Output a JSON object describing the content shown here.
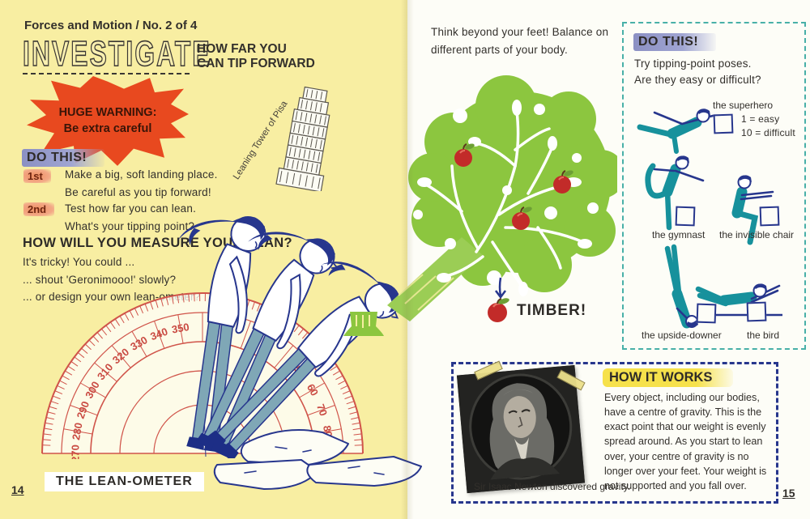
{
  "palette": {
    "page_yellow": "#f8eea2",
    "page_white": "#fdfdf7",
    "warning_red": "#e8491f",
    "navy": "#27368d",
    "teal_pose": "#17919c",
    "slate_pants": "#7fa7b6",
    "protractor_red": "#d0544a",
    "tree_green": "#8cc63f",
    "trunk_green": "#9bcd55",
    "highlight_yellow": "#f6e14b",
    "brush_purple": "#8b90c3",
    "brush_salmon": "#ee8d60"
  },
  "left_page": {
    "kicker": "Forces and Motion / No. 2 of 4",
    "title": "INVESTIGATE",
    "subtitle_line1": "HOW FAR YOU",
    "subtitle_line2": "CAN TIP FORWARD",
    "warning_line1": "HUGE WARNING:",
    "warning_line2": "Be extra careful",
    "do_this": {
      "heading": "DO THIS!",
      "steps": [
        {
          "badge": "1st",
          "line1": "Make a big, soft landing place.",
          "line2": "Be careful as you tip forward!"
        },
        {
          "badge": "2nd",
          "line1": "Test how far you can lean.",
          "line2": "What's your tipping point?"
        }
      ]
    },
    "measure": {
      "heading": "HOW WILL YOU MEASURE YOUR LEAN?",
      "line1": "It's tricky! You could ...",
      "line2": "... shout 'Geronimooo!' slowly?",
      "line3": "... or design your own lean-ometer?"
    },
    "pisa_label": "Leaning Tower of Pisa",
    "lean_ometer_label": "THE LEAN-OMETER",
    "page_number": "14"
  },
  "right_page": {
    "intro_line1": "Think beyond your feet! Balance on",
    "intro_line2": "different parts of your body.",
    "timber": "TIMBER!",
    "do_this_box": {
      "heading": "DO THIS!",
      "line1": "Try tipping-point poses.",
      "line2": "Are they easy or difficult?",
      "scale_line1": "1 = easy",
      "scale_line2": "10 = difficult",
      "poses": [
        "the superhero",
        "the gymnast",
        "the invisible chair",
        "the upside-downer",
        "the bird"
      ]
    },
    "how_it_works": {
      "heading": "HOW IT WORKS",
      "body": "Every object, including our bodies, have a centre of gravity. This is the exact point that our weight is evenly spread around. As you start to lean over, your centre of gravity is no longer over your feet. Your weight is not supported and you fall over.",
      "caption": "Sir Isaac Newton discovered gravity."
    },
    "page_number": "15"
  },
  "protractor": {
    "left_labels": [
      "270",
      "280",
      "290",
      "300",
      "310",
      "320",
      "330",
      "340",
      "350"
    ],
    "right_labels": [
      "50",
      "60",
      "70",
      "80"
    ]
  }
}
